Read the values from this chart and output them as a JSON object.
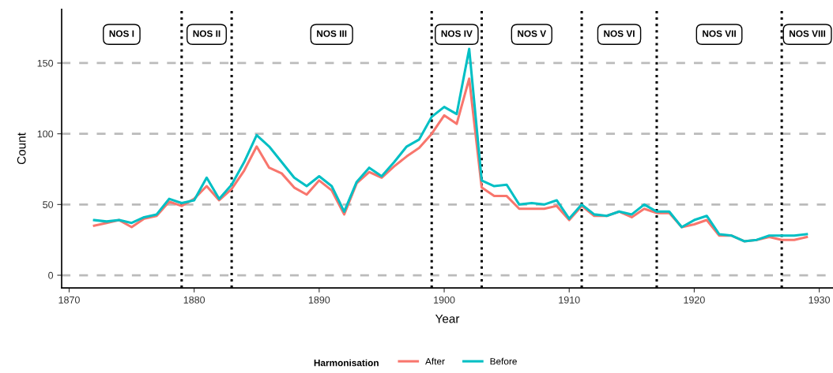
{
  "chart_data": {
    "type": "line",
    "xlabel": "Year",
    "ylabel": "Count",
    "legend_title": "Harmonisation",
    "legend": "bottom",
    "grid": "y",
    "line_style": "solid",
    "marker": "none",
    "x": [
      1872,
      1873,
      1874,
      1875,
      1876,
      1877,
      1878,
      1879,
      1880,
      1881,
      1882,
      1883,
      1884,
      1885,
      1886,
      1887,
      1888,
      1889,
      1890,
      1891,
      1892,
      1893,
      1894,
      1895,
      1896,
      1897,
      1898,
      1899,
      1900,
      1901,
      1902,
      1903,
      1904,
      1905,
      1906,
      1907,
      1908,
      1909,
      1910,
      1911,
      1912,
      1913,
      1914,
      1915,
      1916,
      1917,
      1918,
      1919,
      1920,
      1921,
      1922,
      1923,
      1924,
      1925,
      1926,
      1927,
      1928,
      1929
    ],
    "series": [
      {
        "name": "After",
        "color": "#f8766d",
        "values": [
          35,
          37,
          39,
          34,
          40,
          42,
          52,
          49,
          54,
          63,
          53,
          61,
          74,
          91,
          76,
          72,
          62,
          57,
          67,
          60,
          43,
          65,
          73,
          69,
          77,
          84,
          90,
          100,
          113,
          107,
          139,
          62,
          56,
          56,
          47,
          47,
          47,
          49,
          39,
          49,
          42,
          42,
          45,
          41,
          47,
          44,
          44,
          34,
          36,
          39,
          28,
          28,
          24,
          25,
          27,
          25,
          25,
          27
        ]
      },
      {
        "name": "Before",
        "color": "#00bfc4",
        "values": [
          39,
          38,
          39,
          37,
          41,
          43,
          54,
          51,
          53,
          69,
          54,
          64,
          80,
          99,
          91,
          80,
          69,
          63,
          70,
          63,
          45,
          66,
          76,
          70,
          80,
          91,
          96,
          112,
          119,
          114,
          160,
          67,
          63,
          64,
          50,
          51,
          50,
          53,
          40,
          50,
          43,
          42,
          45,
          43,
          50,
          45,
          45,
          34,
          39,
          42,
          29,
          28,
          24,
          25,
          28,
          28,
          28,
          29
        ]
      }
    ],
    "xlim": [
      1869.4,
      1931.1
    ],
    "xticks": [
      1870,
      1880,
      1890,
      1900,
      1910,
      1920,
      1930
    ],
    "ylim": [
      -9,
      188
    ],
    "yticks": [
      0,
      50,
      100,
      150
    ],
    "ref_lines": [
      {
        "axis": "x",
        "value": 1879,
        "color": "#000000",
        "line_style": "dotted"
      },
      {
        "axis": "x",
        "value": 1883,
        "color": "#000000",
        "line_style": "dotted"
      },
      {
        "axis": "x",
        "value": 1899,
        "color": "#000000",
        "line_style": "dotted"
      },
      {
        "axis": "x",
        "value": 1903,
        "color": "#000000",
        "line_style": "dotted"
      },
      {
        "axis": "x",
        "value": 1911,
        "color": "#000000",
        "line_style": "dotted"
      },
      {
        "axis": "x",
        "value": 1917,
        "color": "#000000",
        "line_style": "dotted"
      },
      {
        "axis": "x",
        "value": 1927,
        "color": "#000000",
        "line_style": "dotted"
      }
    ],
    "annotations": [
      "NOS I",
      "NOS II",
      "NOS III",
      "NOS IV",
      "NOS V",
      "NOS VI",
      "NOS VII",
      "NOS VIII"
    ]
  }
}
